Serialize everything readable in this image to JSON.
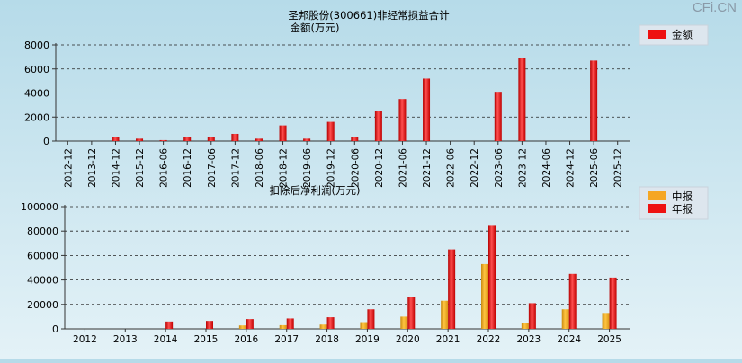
{
  "watermark": "CFi.CN",
  "chart_data": [
    {
      "type": "bar",
      "title": "圣邦股份(300661)非经常损益合计",
      "subtitle": "金额(万元)",
      "categories": [
        "2012-12",
        "2013-12",
        "2014-12",
        "2015-12",
        "2016-06",
        "2016-12",
        "2017-06",
        "2017-12",
        "2018-06",
        "2018-12",
        "2019-06",
        "2019-12",
        "2020-06",
        "2020-12",
        "2021-06",
        "2021-12",
        "2022-06",
        "2022-12",
        "2023-06",
        "2023-12",
        "2024-06",
        "2024-12",
        "2025-06",
        "2025-12"
      ],
      "series": [
        {
          "name": "金额",
          "color": "#ee1111",
          "values": [
            null,
            null,
            300,
            200,
            80,
            300,
            300,
            600,
            200,
            1300,
            200,
            1600,
            300,
            2500,
            3500,
            5200,
            null,
            null,
            4100,
            6900,
            null,
            null,
            6700,
            null
          ]
        }
      ],
      "ylim": [
        0,
        8000
      ],
      "yticks": [
        0,
        2000,
        4000,
        6000,
        8000
      ],
      "grid": true,
      "legend_position": "top-right"
    },
    {
      "type": "bar",
      "title": "扣除后净利润(万元)",
      "categories": [
        "2012",
        "2013",
        "2014",
        "2015",
        "2016",
        "2017",
        "2018",
        "2019",
        "2020",
        "2021",
        "2022",
        "2023",
        "2024",
        "2025"
      ],
      "series": [
        {
          "name": "中报",
          "color": "#f5a623",
          "values": [
            null,
            null,
            null,
            null,
            2800,
            3000,
            3500,
            5500,
            10000,
            23000,
            53000,
            5000,
            16000,
            13000
          ]
        },
        {
          "name": "年报",
          "color": "#ee1111",
          "values": [
            null,
            null,
            6000,
            6500,
            8000,
            8500,
            9500,
            16000,
            26000,
            65000,
            85000,
            21000,
            45000,
            42000
          ]
        }
      ],
      "ylim": [
        0,
        100000
      ],
      "yticks": [
        0,
        20000,
        40000,
        60000,
        80000,
        100000
      ],
      "grid": true,
      "legend_position": "top-right"
    }
  ]
}
